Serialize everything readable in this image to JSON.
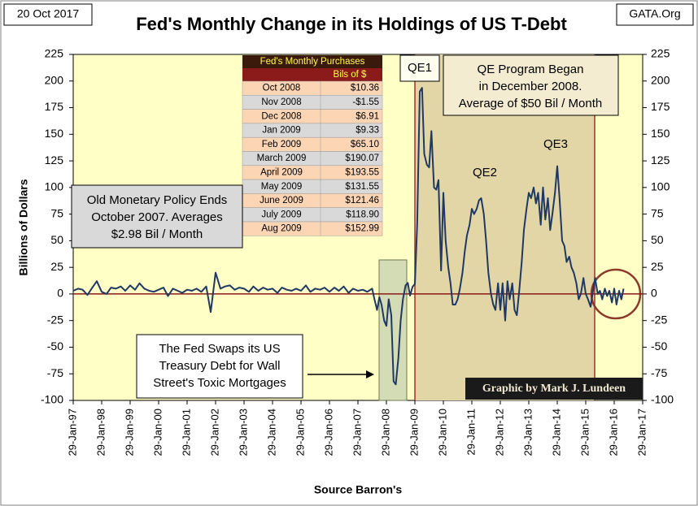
{
  "chart_data": {
    "type": "line",
    "title": "Fed's Monthly Change in its Holdings of US T-Debt",
    "date": "20 Oct 2017",
    "source_site": "GATA.Org",
    "ylabel": "Billions  of Dollars",
    "xlabel": "Source Barron's",
    "credit": "Graphic by Mark J. Lundeen",
    "color": "#1f3864",
    "xlim": [
      1997,
      2017
    ],
    "xticks": [
      {
        "value": 1997,
        "label": "29-Jan-97"
      },
      {
        "value": 1998,
        "label": "29-Jan-98"
      },
      {
        "value": 1999,
        "label": "29-Jan-99"
      },
      {
        "value": 2000,
        "label": "29-Jan-00"
      },
      {
        "value": 2001,
        "label": "29-Jan-01"
      },
      {
        "value": 2002,
        "label": "29-Jan-02"
      },
      {
        "value": 2003,
        "label": "29-Jan-03"
      },
      {
        "value": 2004,
        "label": "29-Jan-04"
      },
      {
        "value": 2005,
        "label": "29-Jan-05"
      },
      {
        "value": 2006,
        "label": "29-Jan-06"
      },
      {
        "value": 2007,
        "label": "29-Jan-07"
      },
      {
        "value": 2008,
        "label": "29-Jan-08"
      },
      {
        "value": 2009,
        "label": "29-Jan-09"
      },
      {
        "value": 2010,
        "label": "29-Jan-10"
      },
      {
        "value": 2011,
        "label": "29-Jan-11"
      },
      {
        "value": 2012,
        "label": "29-Jan-12"
      },
      {
        "value": 2013,
        "label": "29-Jan-13"
      },
      {
        "value": 2014,
        "label": "29-Jan-14"
      },
      {
        "value": 2015,
        "label": "29-Jan-15"
      },
      {
        "value": 2016,
        "label": "29-Jan-16"
      },
      {
        "value": 2017,
        "label": "29-Jan-17"
      }
    ],
    "ylim": [
      -100,
      225
    ],
    "yticks": [
      -100,
      -75,
      -50,
      -25,
      0,
      25,
      50,
      75,
      100,
      125,
      150,
      175,
      200,
      225
    ],
    "y2lim": [
      -100,
      225
    ],
    "y2ticks": [
      -100,
      -75,
      -50,
      -25,
      0,
      25,
      50,
      75,
      100,
      125,
      150,
      175,
      200,
      225
    ],
    "x": [
      1997.0,
      1997.17,
      1997.33,
      1997.5,
      1997.67,
      1997.83,
      1998.0,
      1998.17,
      1998.33,
      1998.5,
      1998.67,
      1998.83,
      1999.0,
      1999.17,
      1999.33,
      1999.5,
      1999.67,
      1999.83,
      2000.0,
      2000.17,
      2000.33,
      2000.5,
      2000.67,
      2000.83,
      2001.0,
      2001.17,
      2001.33,
      2001.5,
      2001.67,
      2001.83,
      2002.0,
      2002.17,
      2002.33,
      2002.5,
      2002.67,
      2002.83,
      2003.0,
      2003.17,
      2003.33,
      2003.5,
      2003.67,
      2003.83,
      2004.0,
      2004.17,
      2004.33,
      2004.5,
      2004.67,
      2004.83,
      2005.0,
      2005.17,
      2005.33,
      2005.5,
      2005.67,
      2005.83,
      2006.0,
      2006.17,
      2006.33,
      2006.5,
      2006.67,
      2006.83,
      2007.0,
      2007.17,
      2007.33,
      2007.5,
      2007.58,
      2007.67,
      2007.75,
      2007.83,
      2007.92,
      2008.0,
      2008.08,
      2008.17,
      2008.25,
      2008.33,
      2008.42,
      2008.5,
      2008.58,
      2008.67,
      2008.75,
      2008.83,
      2008.92,
      2009.0,
      2009.08,
      2009.17,
      2009.25,
      2009.33,
      2009.42,
      2009.5,
      2009.58,
      2009.67,
      2009.75,
      2009.83,
      2009.92,
      2010.0,
      2010.08,
      2010.17,
      2010.25,
      2010.33,
      2010.42,
      2010.5,
      2010.58,
      2010.67,
      2010.75,
      2010.83,
      2010.92,
      2011.0,
      2011.08,
      2011.17,
      2011.25,
      2011.33,
      2011.42,
      2011.5,
      2011.58,
      2011.67,
      2011.75,
      2011.83,
      2011.92,
      2012.0,
      2012.08,
      2012.17,
      2012.25,
      2012.33,
      2012.42,
      2012.5,
      2012.58,
      2012.67,
      2012.75,
      2012.83,
      2012.92,
      2013.0,
      2013.08,
      2013.17,
      2013.25,
      2013.33,
      2013.42,
      2013.5,
      2013.58,
      2013.67,
      2013.75,
      2013.83,
      2013.92,
      2014.0,
      2014.08,
      2014.17,
      2014.25,
      2014.33,
      2014.42,
      2014.5,
      2014.58,
      2014.67,
      2014.75,
      2014.83,
      2014.92,
      2015.0,
      2015.08,
      2015.17,
      2015.25,
      2015.33,
      2015.42,
      2015.5,
      2015.58,
      2015.67,
      2015.75,
      2015.83,
      2015.92,
      2016.0,
      2016.08,
      2016.17,
      2016.25,
      2016.33
    ],
    "values": [
      3,
      5,
      4,
      -1,
      6,
      12,
      2,
      0,
      6,
      5,
      7,
      3,
      8,
      4,
      10,
      5,
      3,
      2,
      4,
      6,
      -2,
      5,
      3,
      1,
      4,
      3,
      5,
      2,
      7,
      -17,
      20,
      5,
      7,
      8,
      4,
      6,
      5,
      2,
      7,
      3,
      6,
      4,
      5,
      1,
      6,
      4,
      3,
      5,
      3,
      8,
      2,
      5,
      4,
      6,
      2,
      6,
      3,
      7,
      1,
      5,
      3,
      4,
      2,
      5,
      -5,
      -15,
      -3,
      -10,
      -25,
      -30,
      -5,
      -20,
      -82,
      -85,
      -60,
      -25,
      -5,
      8,
      10.36,
      -1.55,
      6.91,
      9.33,
      65.1,
      190.07,
      193.55,
      131.55,
      121.46,
      118.9,
      152.99,
      100,
      98,
      107,
      22,
      95,
      50,
      25,
      10,
      -10,
      -10,
      -5,
      5,
      20,
      40,
      55,
      65,
      80,
      75,
      80,
      88,
      90,
      75,
      50,
      20,
      0,
      -10,
      -15,
      10,
      -15,
      10,
      -25,
      12,
      -5,
      10,
      -15,
      -20,
      5,
      30,
      60,
      80,
      95,
      90,
      100,
      85,
      95,
      65,
      100,
      70,
      90,
      60,
      75,
      95,
      120,
      90,
      50,
      45,
      30,
      35,
      25,
      20,
      10,
      -5,
      0,
      15,
      0,
      -5,
      -12,
      2,
      15,
      0,
      3,
      -5,
      5,
      -2,
      3,
      -8,
      5,
      -10,
      3,
      -5,
      5
    ],
    "table": {
      "title": "Fed's Monthly Purchases",
      "header": "Bils of $",
      "rows": [
        [
          "Oct 2008",
          "$10.36"
        ],
        [
          "Nov 2008",
          "-$1.55"
        ],
        [
          "Dec 2008",
          "$6.91"
        ],
        [
          "Jan 2009",
          "$9.33"
        ],
        [
          "Feb 2009",
          "$65.10"
        ],
        [
          "March 2009",
          "$190.07"
        ],
        [
          "April 2009",
          "$193.55"
        ],
        [
          "May 2009",
          "$131.55"
        ],
        [
          "June 2009",
          "$121.46"
        ],
        [
          "July 2009",
          "$118.90"
        ],
        [
          "Aug 2009",
          "$152.99"
        ]
      ]
    },
    "annotations": [
      {
        "text": [
          "QE1"
        ]
      },
      {
        "text": [
          "QE Program Began",
          "in December 2008.",
          "Average of $50 Bil / Month"
        ]
      },
      {
        "text": [
          "QE2"
        ]
      },
      {
        "text": [
          "QE3"
        ]
      },
      {
        "text": [
          "Old Monetary Policy Ends",
          "October 2007.  Averages",
          "$2.98 Bil / Month"
        ]
      },
      {
        "text": [
          "The Fed Swaps its US",
          "Treasury Debt for Wall",
          "Street's Toxic Mortgages"
        ]
      }
    ]
  }
}
